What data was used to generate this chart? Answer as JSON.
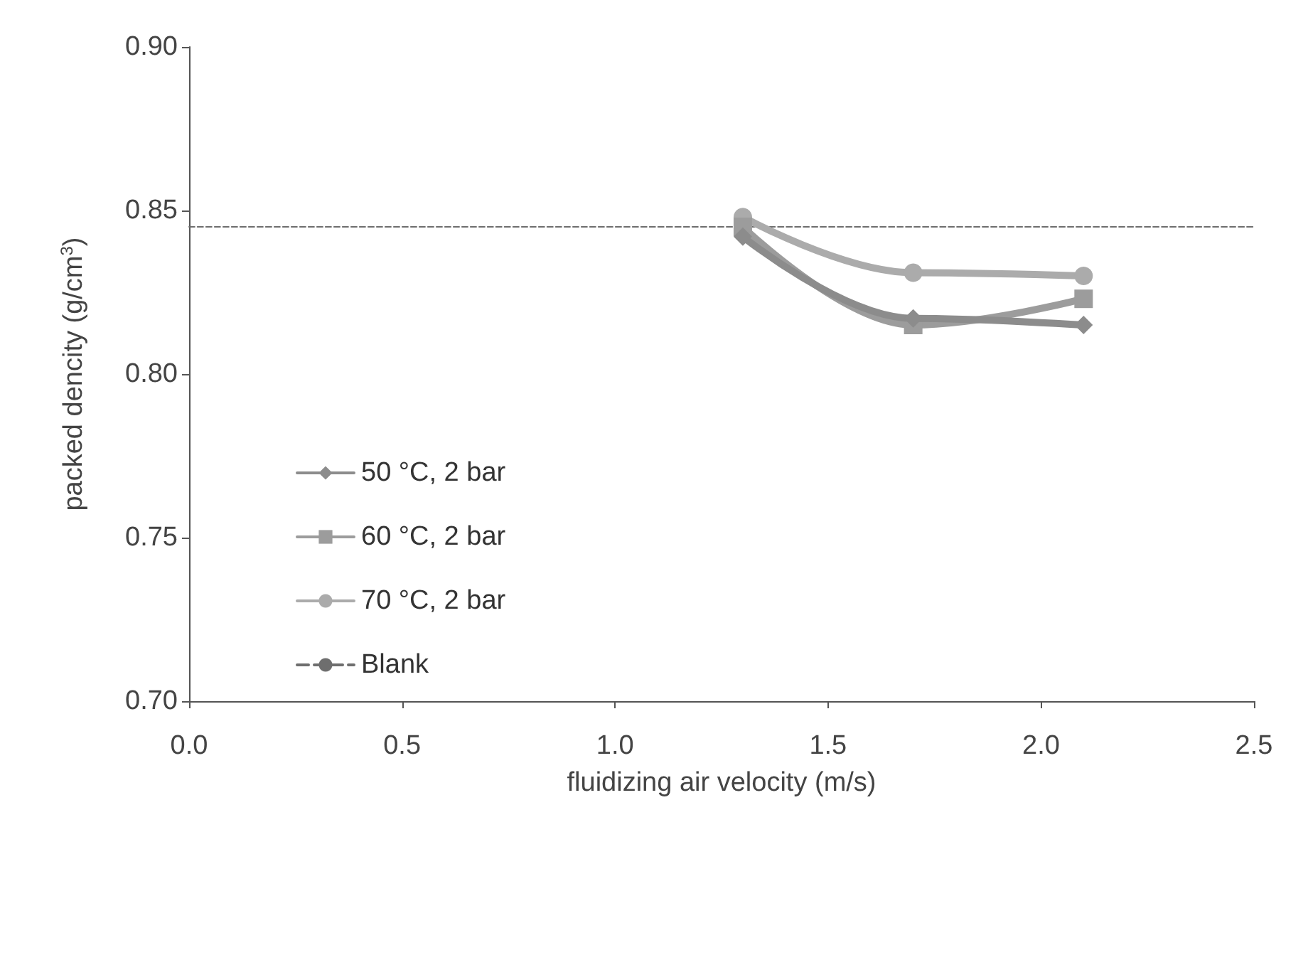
{
  "chart_data": {
    "type": "line",
    "xlabel": "fluidizing air velocity (m/s)",
    "ylabel": "packed dencity (g/cm$^{3}$)",
    "x": [
      1.3,
      1.7,
      2.1
    ],
    "series": [
      {
        "name": "50 °C, 2 bar",
        "color": "#8c8c8c",
        "marker": "diamond",
        "values": [
          0.842,
          0.817,
          0.815
        ]
      },
      {
        "name": "60 °C, 2 bar",
        "color": "#9c9c9c",
        "marker": "square",
        "values": [
          0.845,
          0.815,
          0.823
        ]
      },
      {
        "name": "70 °C, 2 bar",
        "color": "#ababab",
        "marker": "circle",
        "values": [
          0.848,
          0.831,
          0.83
        ]
      },
      {
        "name": "Blank",
        "color": "#6e6e6e",
        "marker": "none",
        "line_style": "dashed",
        "x": [
          0,
          2.5
        ],
        "values": [
          0.845,
          0.845
        ]
      }
    ],
    "xlim": [
      0,
      2.5
    ],
    "xticks": [
      {
        "value": 0,
        "label": "0.0"
      },
      0.5,
      {
        "value": 1,
        "label": "1.0"
      },
      1.5,
      {
        "value": 2,
        "label": "2.0"
      },
      2.5
    ],
    "ylim": [
      0.7,
      0.9
    ],
    "yticks": [
      {
        "value": 0.7,
        "label": "0.70"
      },
      0.75,
      {
        "value": 0.8,
        "label": "0.80"
      },
      0.85,
      {
        "value": 0.9,
        "label": "0.90"
      }
    ],
    "grid": false,
    "legend": "left"
  }
}
